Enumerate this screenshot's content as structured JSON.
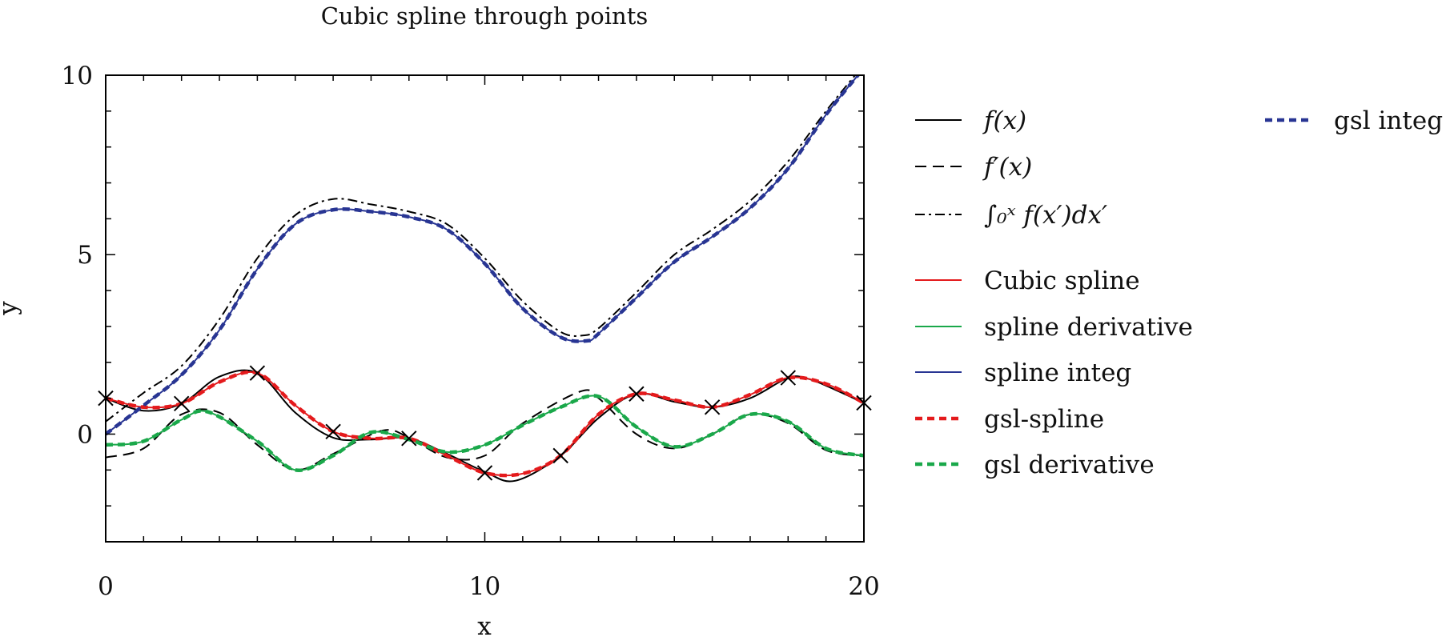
{
  "chart_data": {
    "type": "line",
    "title": "Cubic spline through points",
    "xlabel": "x",
    "ylabel": "y",
    "xlim": [
      0,
      20
    ],
    "ylim": [
      -3,
      10
    ],
    "x_ticks": [
      0,
      10,
      20
    ],
    "y_ticks": [
      0,
      5,
      10
    ],
    "grid": false,
    "legend_position": "right",
    "points": {
      "x": [
        0,
        2,
        4,
        6,
        8,
        10,
        12,
        14,
        16,
        18,
        20
      ],
      "y": [
        1.0,
        0.85,
        1.7,
        0.07,
        -0.12,
        -1.08,
        -0.6,
        1.12,
        0.75,
        1.57,
        0.87
      ]
    },
    "series": [
      {
        "name": "f(x)",
        "color": "#000000",
        "style": "solid",
        "x": [
          0,
          1,
          2,
          3,
          4,
          5,
          6,
          7,
          8,
          9,
          10,
          10.8,
          12,
          13,
          14,
          15,
          16,
          17,
          18,
          18.5,
          19,
          20
        ],
        "y": [
          1.0,
          0.65,
          0.85,
          1.6,
          1.7,
          0.6,
          -0.1,
          -0.15,
          -0.12,
          -0.55,
          -1.05,
          -1.3,
          -0.6,
          0.45,
          1.12,
          0.9,
          0.75,
          1.0,
          1.57,
          1.55,
          1.35,
          0.87
        ]
      },
      {
        "name": "f′(x)",
        "color": "#000000",
        "style": "dashed",
        "x": [
          0,
          1,
          2,
          3,
          4,
          5,
          6,
          7.3,
          8,
          9,
          10,
          11,
          12.5,
          13,
          14,
          15,
          16,
          17,
          18,
          19,
          20
        ],
        "y": [
          -0.65,
          -0.4,
          0.55,
          0.6,
          -0.3,
          -1.0,
          -0.55,
          0.1,
          -0.1,
          -0.65,
          -0.6,
          0.3,
          1.18,
          1.0,
          0.0,
          -0.4,
          0.0,
          0.55,
          0.3,
          -0.45,
          -0.6
        ]
      },
      {
        "name": "∫₀ˣ f(x′)dx′",
        "color": "#000000",
        "style": "dashdot",
        "x": [
          0,
          1,
          2,
          3,
          4,
          5,
          6,
          7,
          8,
          9,
          10,
          11,
          12,
          12.6,
          13,
          14,
          15,
          16,
          17,
          18,
          19,
          20
        ],
        "y": [
          0.35,
          1.15,
          1.9,
          3.2,
          4.9,
          6.1,
          6.55,
          6.4,
          6.2,
          5.85,
          4.9,
          3.7,
          2.85,
          2.75,
          2.95,
          3.95,
          5.0,
          5.7,
          6.5,
          7.6,
          9.0,
          10.3
        ]
      },
      {
        "name": "Cubic spline",
        "color": "#e41a1c",
        "style": "solid",
        "x": [
          0,
          1,
          2,
          3,
          4,
          5,
          6,
          7,
          8,
          9,
          10,
          11,
          12,
          13,
          14,
          15,
          16,
          17,
          18,
          19,
          20
        ],
        "y": [
          1.0,
          0.75,
          0.85,
          1.45,
          1.7,
          0.8,
          0.07,
          -0.12,
          -0.12,
          -0.6,
          -1.08,
          -1.1,
          -0.6,
          0.55,
          1.12,
          0.95,
          0.75,
          1.1,
          1.57,
          1.4,
          0.87
        ]
      },
      {
        "name": "spline derivative",
        "color": "#1aa84a",
        "style": "solid",
        "x": [
          0,
          1,
          2,
          2.7,
          4,
          5,
          6,
          7,
          8,
          9,
          10,
          11,
          12,
          13,
          14,
          15,
          16,
          17,
          18,
          19,
          20
        ],
        "y": [
          -0.3,
          -0.2,
          0.4,
          0.62,
          -0.2,
          -1.0,
          -0.6,
          0.05,
          -0.15,
          -0.5,
          -0.3,
          0.25,
          0.75,
          1.05,
          0.2,
          -0.35,
          0.0,
          0.55,
          0.35,
          -0.4,
          -0.6
        ]
      },
      {
        "name": "spline integ",
        "color": "#283593",
        "style": "solid",
        "x": [
          0,
          1,
          2,
          3,
          4,
          5,
          6,
          7,
          8,
          9,
          10,
          11,
          12,
          12.7,
          13,
          14,
          15,
          16,
          17,
          18,
          19,
          20
        ],
        "y": [
          0.0,
          0.8,
          1.65,
          2.9,
          4.6,
          5.85,
          6.25,
          6.2,
          6.05,
          5.7,
          4.75,
          3.5,
          2.7,
          2.6,
          2.8,
          3.8,
          4.8,
          5.5,
          6.3,
          7.4,
          8.9,
          10.2
        ]
      },
      {
        "name": "gsl-spline",
        "color": "#e41a1c",
        "style": "thick-dashed",
        "x": [
          0,
          1,
          2,
          3,
          4,
          5,
          6,
          7,
          8,
          9,
          10,
          11,
          12,
          13,
          14,
          15,
          16,
          17,
          18,
          19,
          20
        ],
        "y": [
          1.0,
          0.75,
          0.85,
          1.45,
          1.7,
          0.8,
          0.07,
          -0.12,
          -0.12,
          -0.6,
          -1.08,
          -1.1,
          -0.6,
          0.55,
          1.12,
          0.95,
          0.75,
          1.1,
          1.57,
          1.4,
          0.87
        ]
      },
      {
        "name": "gsl derivative",
        "color": "#1aa84a",
        "style": "thick-dashed",
        "x": [
          0,
          1,
          2,
          2.7,
          4,
          5,
          6,
          7,
          8,
          9,
          10,
          11,
          12,
          13,
          14,
          15,
          16,
          17,
          18,
          19,
          20
        ],
        "y": [
          -0.3,
          -0.2,
          0.4,
          0.62,
          -0.2,
          -1.0,
          -0.6,
          0.05,
          -0.15,
          -0.5,
          -0.3,
          0.25,
          0.75,
          1.05,
          0.2,
          -0.35,
          0.0,
          0.55,
          0.35,
          -0.4,
          -0.6
        ]
      },
      {
        "name": "gsl integ",
        "color": "#283593",
        "style": "thick-dashed",
        "x": [
          0,
          1,
          2,
          3,
          4,
          5,
          6,
          7,
          8,
          9,
          10,
          11,
          12,
          12.7,
          13,
          14,
          15,
          16,
          17,
          18,
          19,
          20
        ],
        "y": [
          0.0,
          0.8,
          1.65,
          2.9,
          4.6,
          5.85,
          6.25,
          6.2,
          6.05,
          5.7,
          4.75,
          3.5,
          2.7,
          2.6,
          2.8,
          3.8,
          4.8,
          5.5,
          6.3,
          7.4,
          8.9,
          10.2
        ]
      }
    ]
  }
}
